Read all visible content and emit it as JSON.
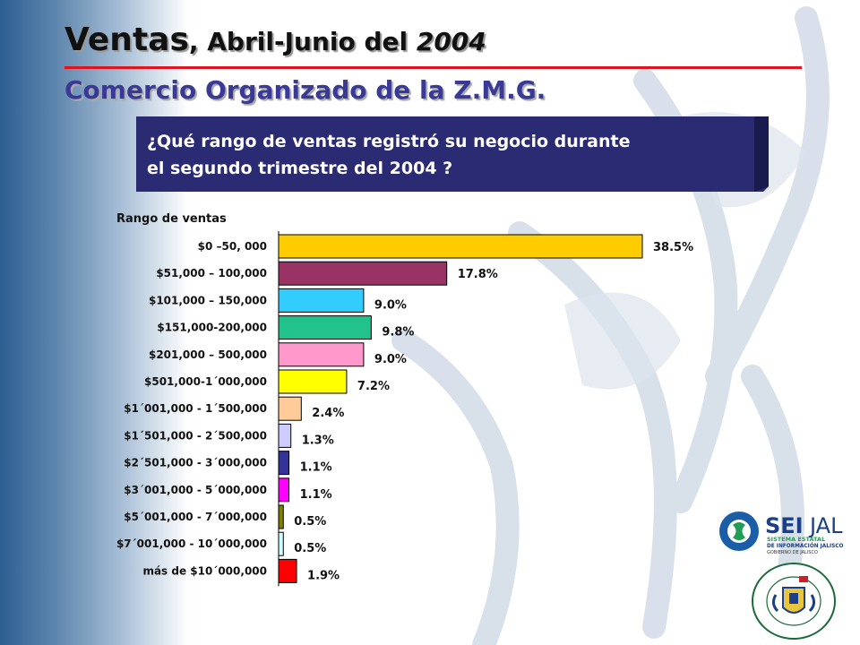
{
  "header": {
    "title_part1": "Ventas",
    "title_part2": ", Abril-Junio del ",
    "title_part3": "2004",
    "subtitle": "Comercio Organizado de la Z.M.G.",
    "question_line1": "¿Qué rango de ventas registró su negocio durante",
    "question_line2": "el segundo trimestre del 2004 ?"
  },
  "logos": {
    "seijal_sei": "SEI",
    "seijal_jal": "JAL",
    "seijal_line1": "SISTEMA ESTATAL",
    "seijal_line2": "DE INFORMACIÓN JALISCO",
    "seijal_line3": "GOBIERNO DE JALISCO",
    "camara_text": "CAMARA DE COMERCIO DE GUADALAJARA"
  },
  "colors": {
    "title_red_line": "#e0141e",
    "subtitle": "#3a3a96",
    "question_box": "#28286e"
  },
  "chart_data": {
    "type": "bar",
    "orientation": "horizontal",
    "ylabel": "Rango de ventas",
    "categories": [
      "$0 –50, 000",
      "$51,000 – 100,000",
      "$101,000 – 150,000",
      "$151,000-200,000",
      "$201,000 – 500,000",
      "$501,000-1´000,000",
      "$1´001,000 - 1´500,000",
      "$1´501,000 - 2´500,000",
      "$2´501,000 - 3´000,000",
      "$3´001,000 -  5´000,000",
      "$5´001,000 - 7´000,000",
      "$7´001,000 - 10´000,000",
      "más de $10´000,000"
    ],
    "values": [
      38.5,
      17.8,
      9.0,
      9.8,
      9.0,
      7.2,
      2.4,
      1.3,
      1.1,
      1.1,
      0.5,
      0.5,
      1.9
    ],
    "labels": [
      "38.5%",
      "17.8%",
      "9.0%",
      "9.8%",
      "9.0%",
      "7.2%",
      "2.4%",
      "1.3%",
      "1.1%",
      "1.1%",
      "0.5%",
      "0.5%",
      "1.9%"
    ],
    "colors": [
      "#ffcc00",
      "#993366",
      "#33ccff",
      "#21c28c",
      "#ff99cc",
      "#ffff00",
      "#ffcc99",
      "#ccccff",
      "#333399",
      "#ff00ff",
      "#808000",
      "#ccffff",
      "#ff0000"
    ],
    "xlim": [
      0,
      38.5
    ],
    "grid": false,
    "legend": "none"
  }
}
